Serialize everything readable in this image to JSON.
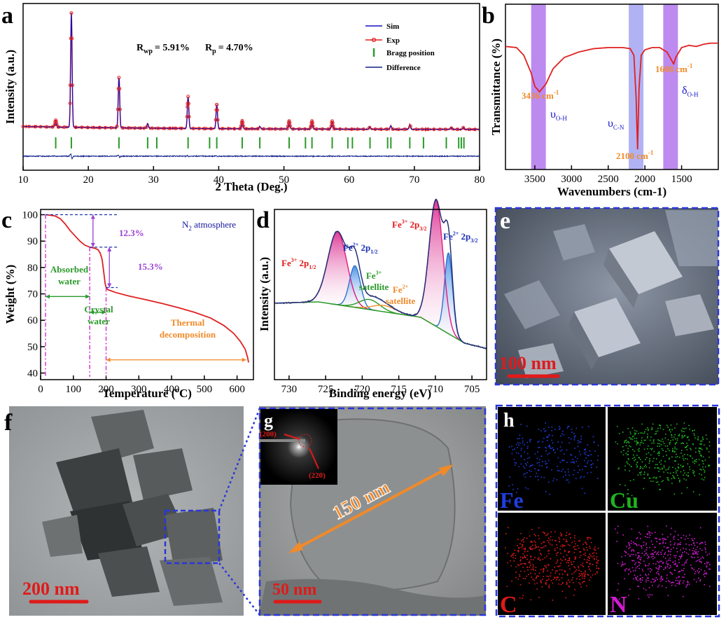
{
  "figure": {
    "panel_letters": [
      "a",
      "b",
      "c",
      "d",
      "e",
      "f",
      "g",
      "h"
    ]
  },
  "chart_data": [
    {
      "panel": "a",
      "type": "line",
      "title": "",
      "xlabel": "2 Theta (Deg.)",
      "ylabel": "Intensity (a.u.)",
      "xlim": [
        10,
        80
      ],
      "xticks": [
        "10",
        "20",
        "30",
        "40",
        "50",
        "60",
        "70",
        "80"
      ],
      "annotation_rwp_symbol": "R",
      "annotation_rwp_sub": "wp",
      "annotation_rwp_value": "= 5.91%",
      "annotation_rp_symbol": "R",
      "annotation_rp_sub": "p",
      "annotation_rp_value": "= 4.70%",
      "legend": [
        "Sim",
        "Exp",
        "Bragg position",
        "Difference"
      ],
      "colors": {
        "sim": "#1010c0",
        "exp": "#e02020",
        "bragg": "#2a9a2a",
        "difference": "#10208a"
      },
      "peaks": [
        {
          "x": 15.0,
          "h": 6
        },
        {
          "x": 17.4,
          "h": 100
        },
        {
          "x": 24.7,
          "h": 44
        },
        {
          "x": 29.1,
          "h": 4
        },
        {
          "x": 35.3,
          "h": 28
        },
        {
          "x": 39.7,
          "h": 21
        },
        {
          "x": 43.6,
          "h": 7
        },
        {
          "x": 46.3,
          "h": 2
        },
        {
          "x": 50.8,
          "h": 7
        },
        {
          "x": 54.3,
          "h": 7
        },
        {
          "x": 57.4,
          "h": 7
        },
        {
          "x": 63.2,
          "h": 2
        },
        {
          "x": 66.4,
          "h": 3
        },
        {
          "x": 69.3,
          "h": 4
        },
        {
          "x": 75.6,
          "h": 1.5
        },
        {
          "x": 77.5,
          "h": 1.5
        }
      ],
      "bragg_positions": [
        15.0,
        17.4,
        24.7,
        29.1,
        30.5,
        35.3,
        38.6,
        39.7,
        43.6,
        46.3,
        50.8,
        53.3,
        54.3,
        57.4,
        59.8,
        60.5,
        63.2,
        65.9,
        66.4,
        69.3,
        71.4,
        74.9,
        76.8,
        77.2,
        77.6
      ]
    },
    {
      "panel": "b",
      "type": "line",
      "xlabel": "Wavenumbers (cm-1)",
      "ylabel": "Transmittance (%)",
      "xlim": [
        3900,
        1000
      ],
      "xticks": [
        "3500",
        "3000",
        "2500",
        "2000",
        "1500"
      ],
      "x_tick_values": [
        3500,
        3000,
        2500,
        2000,
        1500
      ],
      "bands": [
        {
          "from": 3550,
          "to": 3350,
          "color": "#b276ec"
        },
        {
          "from": 2220,
          "to": 2020,
          "color": "#a3a4f2"
        },
        {
          "from": 1750,
          "to": 1550,
          "color": "#b276ec"
        }
      ],
      "series_color": "#e02020",
      "points": [
        [
          3900,
          4
        ],
        [
          3750,
          5
        ],
        [
          3650,
          12
        ],
        [
          3550,
          28
        ],
        [
          3500,
          40
        ],
        [
          3436,
          45
        ],
        [
          3350,
          38
        ],
        [
          3250,
          24
        ],
        [
          3100,
          14
        ],
        [
          2900,
          9
        ],
        [
          2700,
          6
        ],
        [
          2500,
          5
        ],
        [
          2300,
          5
        ],
        [
          2200,
          6
        ],
        [
          2150,
          12
        ],
        [
          2120,
          50
        ],
        [
          2100,
          97
        ],
        [
          2080,
          42
        ],
        [
          2050,
          12
        ],
        [
          2000,
          7
        ],
        [
          1900,
          5
        ],
        [
          1800,
          5
        ],
        [
          1700,
          9
        ],
        [
          1640,
          16
        ],
        [
          1608,
          20
        ],
        [
          1580,
          14
        ],
        [
          1500,
          5
        ],
        [
          1400,
          3
        ],
        [
          1300,
          4
        ],
        [
          1200,
          2
        ],
        [
          1100,
          1
        ],
        [
          1000,
          1
        ]
      ],
      "annotation_3436": "3436 cm",
      "annotation_1608": "1608 cm",
      "annotation_2100": "2100 cm",
      "superscript": "-1",
      "label_v": "υ",
      "label_d": "δ",
      "sub_oh": "O-H",
      "sub_cn": "C-N"
    },
    {
      "panel": "c",
      "type": "line",
      "xlabel": "Temperature (",
      "xlabel_sup": "o",
      "xlabel_tail": "C)",
      "ylabel": "Weight (%)",
      "xlim": [
        0,
        650
      ],
      "ylim": [
        37.5,
        102
      ],
      "xticks": [
        "0",
        "100",
        "200",
        "300",
        "400",
        "500",
        "600"
      ],
      "x_tick_values": [
        0,
        100,
        200,
        300,
        400,
        500,
        600
      ],
      "yticks": [
        "40",
        "50",
        "60",
        "70",
        "80",
        "90",
        "100"
      ],
      "y_tick_values": [
        40,
        50,
        60,
        70,
        80,
        90,
        100
      ],
      "series_color": "#e02020",
      "points": [
        [
          15,
          100
        ],
        [
          30,
          99.8
        ],
        [
          45,
          99.5
        ],
        [
          60,
          98.5
        ],
        [
          75,
          96.5
        ],
        [
          90,
          94
        ],
        [
          105,
          92
        ],
        [
          120,
          90
        ],
        [
          135,
          88.5
        ],
        [
          150,
          87.7
        ],
        [
          165,
          87.3
        ],
        [
          175,
          86.8
        ],
        [
          182,
          85.5
        ],
        [
          188,
          83
        ],
        [
          193,
          78
        ],
        [
          197,
          74
        ],
        [
          200,
          72.5
        ],
        [
          205,
          71.6
        ],
        [
          230,
          70.5
        ],
        [
          270,
          69.2
        ],
        [
          320,
          67.8
        ],
        [
          370,
          66.4
        ],
        [
          420,
          64.8
        ],
        [
          470,
          63.0
        ],
        [
          520,
          60.8
        ],
        [
          560,
          58
        ],
        [
          590,
          55
        ],
        [
          610,
          52
        ],
        [
          625,
          49
        ],
        [
          632,
          46
        ],
        [
          635,
          44
        ]
      ],
      "legend_n2": "N",
      "legend_n2_sub": "2",
      "legend_n2_tail": " atmosphere",
      "loss_1": "12.3%",
      "loss_2": "15.3%",
      "label_absorbed_1": "Absorbed",
      "label_absorbed_2": "water",
      "label_crystal_1": "Crystal",
      "label_crystal_2": "water",
      "label_thermal_1": "Thermal",
      "label_thermal_2": "decomposition"
    },
    {
      "panel": "d",
      "type": "line",
      "xlabel": "Binding energy (eV)",
      "ylabel": "Intensity (a.u.)",
      "xlim": [
        732,
        703
      ],
      "xticks": [
        "730",
        "725",
        "720",
        "715",
        "710",
        "705"
      ],
      "x_tick_values": [
        730,
        725,
        720,
        715,
        710,
        705
      ],
      "components": [
        {
          "name": "Fe3+ 2p1/2",
          "center": 723.4,
          "height": 58,
          "sigma": 1.3,
          "color": "#e3197f"
        },
        {
          "name": "Fe2+ 2p1/2",
          "center": 721.0,
          "height": 33,
          "sigma": 0.75,
          "color": "#2d74d0"
        },
        {
          "name": "Fe3+ satellite",
          "center": 719.0,
          "height": 8,
          "sigma": 1.4,
          "color": "#2a9a2a"
        },
        {
          "name": "Fe2+ satellite",
          "center": 717.0,
          "height": 5,
          "sigma": 1.6,
          "color": "#f0902a"
        },
        {
          "name": "Fe3+ 2p3/2",
          "center": 709.9,
          "height": 100,
          "sigma": 0.95,
          "color": "#e3197f"
        },
        {
          "name": "Fe2+ 2p3/2",
          "center": 708.2,
          "height": 64,
          "sigma": 0.55,
          "color": "#2d74d0"
        }
      ],
      "label_fe3_2p12_base": "Fe",
      "label_fe3_2p12_sup": "3+",
      "label_fe3_2p12_orb": " 2p",
      "label_fe3_2p12_sub": "1/2",
      "label_fe2_2p12_base": "Fe",
      "label_fe2_2p12_sup": "2+",
      "label_fe2_2p12_orb": " 2p",
      "label_fe2_2p12_sub": "1/2",
      "label_fe3_sat_base": "Fe",
      "label_fe3_sat_sup": "3+",
      "label_fe3_sat_word": "satellite",
      "label_fe2_sat_base": "Fe",
      "label_fe2_sat_sup": "2+",
      "label_fe2_sat_word": "satellite",
      "label_fe3_2p32_base": "Fe",
      "label_fe3_2p32_sup": "3+",
      "label_fe3_2p32_orb": " 2p",
      "label_fe3_2p32_sub": "3/2",
      "label_fe2_2p32_base": "Fe",
      "label_fe2_2p32_sup": "2+",
      "label_fe2_2p32_orb": " 2p",
      "label_fe2_2p32_sub": "3/2"
    }
  ],
  "images": {
    "e_scale": "100 nm",
    "f_scale": "200 nm",
    "g_scale": "50 nm",
    "g_length": "150 nm",
    "g_saed_1": "(200)",
    "g_saed_2": "(220)",
    "h_labels": [
      "Fe",
      "Cu",
      "C",
      "N"
    ],
    "h_colors": [
      "#1f3ee0",
      "#1fb51f",
      "#e01a1a",
      "#d21ad2"
    ]
  }
}
